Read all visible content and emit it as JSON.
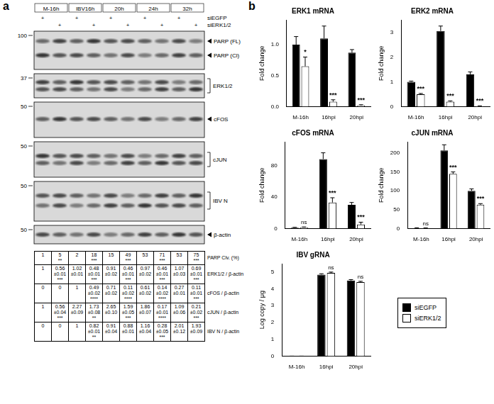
{
  "panel_labels": [
    "a",
    "b"
  ],
  "blot": {
    "groups": [
      "M-16h",
      "IBV16h",
      "20h",
      "24h",
      "32h"
    ],
    "treatments": [
      {
        "name": "siEGFP",
        "marks": [
          "+",
          null,
          "+",
          null,
          "+",
          null,
          "+",
          null,
          "+",
          null
        ]
      },
      {
        "name": "siERK1/2",
        "marks": [
          null,
          "+",
          null,
          "+",
          null,
          "+",
          null,
          "+",
          null,
          "+"
        ]
      }
    ],
    "panels": [
      {
        "labels": [
          "PARP (FL)",
          "PARP (Cl)"
        ],
        "marker": "100"
      },
      {
        "labels": [
          "ERK1/2"
        ],
        "marker": "37"
      },
      {
        "labels": [
          "cFOS"
        ],
        "marker": "50"
      },
      {
        "labels": [
          "cJUN"
        ],
        "marker": "50"
      },
      {
        "labels": [
          "IBV N"
        ],
        "marker": "50"
      },
      {
        "labels": [
          "β-actin"
        ],
        "marker": "50"
      }
    ]
  },
  "table": {
    "rows": [
      {
        "label": "PARP Clv. (%)",
        "cells": [
          [
            "1"
          ],
          [
            "5",
            "**"
          ],
          [
            "2"
          ],
          [
            "18",
            "***"
          ],
          [
            "15"
          ],
          [
            "49",
            "***"
          ],
          [
            "53"
          ],
          [
            "71",
            "***"
          ],
          [
            "53"
          ],
          [
            "75",
            "***"
          ]
        ]
      },
      {
        "label": "ERK1/2 / β-actin",
        "cells": [
          [
            "1"
          ],
          [
            "0.56",
            "±0.01",
            "***"
          ],
          [
            "1.02",
            "±0.01"
          ],
          [
            "0.48",
            "±0.01",
            "***"
          ],
          [
            "0.91",
            "±0.02"
          ],
          [
            "0.46",
            "±0.01",
            "***"
          ],
          [
            "0.97",
            "±0.02"
          ],
          [
            "0.46",
            "±0.01",
            "***"
          ],
          [
            "1.07",
            "±0.03"
          ],
          [
            "0.69",
            "±0.01",
            "***"
          ]
        ]
      },
      {
        "label": "cFOS / β-actin",
        "cells": [
          [
            "0"
          ],
          [
            "0"
          ],
          [
            "1"
          ],
          [
            "0.49",
            "±0.02",
            "****"
          ],
          [
            "0.71",
            "±0.02"
          ],
          [
            "0.11",
            "±0.02",
            "****"
          ],
          [
            "0.61",
            "±0.02"
          ],
          [
            "0.14",
            "±0.02",
            "****"
          ],
          [
            "0.27",
            "±0.01"
          ],
          [
            "0.11",
            "±0.01",
            "***"
          ]
        ]
      },
      {
        "label": "cJUN / β-actin",
        "cells": [
          [
            "1"
          ],
          [
            "0.56",
            "±0.04",
            "***"
          ],
          [
            "2.27",
            "±0.09"
          ],
          [
            "1.73",
            "±0.08",
            "**"
          ],
          [
            "2.65",
            "±0.10"
          ],
          [
            "1.59",
            "±0.05",
            "***"
          ],
          [
            "1.86",
            "±0.07"
          ],
          [
            "0.17",
            "±0.01",
            "****"
          ],
          [
            "1.09",
            "±0.06"
          ],
          [
            "0.21",
            "±0.02",
            "***"
          ]
        ]
      },
      {
        "label": "IBV N / β-actin",
        "cells": [
          [
            "0"
          ],
          [
            "0"
          ],
          [
            "1"
          ],
          [
            "0.82",
            "±0.01",
            "**"
          ],
          [
            "0.91",
            "±0.04"
          ],
          [
            "0.88",
            "±0.01"
          ],
          [
            "1.16",
            "±0.04"
          ],
          [
            "0.28",
            "±0.05",
            "***"
          ],
          [
            "2.01",
            "±0.12"
          ],
          [
            "1.93",
            "±0.09"
          ]
        ]
      }
    ]
  },
  "chart_data": [
    {
      "type": "bar",
      "title": "ERK1 mRNA",
      "ylabel": "Fold change",
      "categories": [
        "M-16h",
        "16hpi",
        "20hpi"
      ],
      "series": [
        {
          "name": "siEGFP",
          "color": "#000000",
          "values": [
            1.0,
            1.1,
            0.87
          ],
          "errors": [
            0.13,
            0.2,
            0.05
          ]
        },
        {
          "name": "siERK1/2",
          "color": "#ffffff",
          "values": [
            0.65,
            0.08,
            0.02
          ],
          "errors": [
            0.15,
            0.03,
            0.01
          ]
        }
      ],
      "significance": [
        "*",
        "***",
        "***"
      ],
      "ylim": [
        0,
        1.4
      ],
      "yticks": [
        {
          "value": 0,
          "label": "0.0"
        },
        {
          "value": 0.5,
          "label": "0.5"
        },
        {
          "value": 1,
          "label": "1.0"
        }
      ],
      "grid": false
    },
    {
      "type": "bar",
      "title": "ERK2 mRNA",
      "ylabel": "Fold change",
      "categories": [
        "M-16h",
        "16hpi",
        "20hpi"
      ],
      "series": [
        {
          "name": "siEGFP",
          "color": "#000000",
          "values": [
            1.0,
            3.05,
            1.3
          ],
          "errors": [
            0.03,
            0.2,
            0.1
          ]
        },
        {
          "name": "siERK1/2",
          "color": "#ffffff",
          "values": [
            0.5,
            0.2,
            0.02
          ],
          "errors": [
            0.03,
            0.03,
            0.01
          ]
        }
      ],
      "significance": [
        "***",
        "***",
        "***"
      ],
      "ylim": [
        0,
        3.5
      ],
      "yticks": [
        0,
        1,
        2,
        3
      ],
      "grid": false
    },
    {
      "type": "bar",
      "title": "cFOS mRNA",
      "ylabel": "Fold change",
      "categories": [
        "M-16h",
        "16hpi",
        "20hpi"
      ],
      "series": [
        {
          "name": "siEGFP",
          "color": "#000000",
          "values": [
            1,
            88,
            30
          ],
          "errors": [
            0.5,
            8,
            3
          ]
        },
        {
          "name": "siERK1/2",
          "color": "#ffffff",
          "values": [
            1.5,
            33,
            5
          ],
          "errors": [
            0.5,
            6,
            3
          ]
        }
      ],
      "significance": [
        "ns",
        "***",
        "***"
      ],
      "ylim": [
        0,
        110
      ],
      "yticks": [
        0,
        40,
        80
      ],
      "grid": false
    },
    {
      "type": "bar",
      "title": "cJUN mRNA",
      "ylabel": "Fold change",
      "categories": [
        "M-16h",
        "16hpi",
        "20hpi"
      ],
      "series": [
        {
          "name": "siEGFP",
          "color": "#000000",
          "values": [
            1,
            207,
            100
          ],
          "errors": [
            1,
            15,
            5
          ]
        },
        {
          "name": "siERK1/2",
          "color": "#ffffff",
          "values": [
            1,
            145,
            63
          ],
          "errors": [
            0.5,
            5,
            3
          ]
        }
      ],
      "significance": [
        "ns",
        "***",
        "***"
      ],
      "ylim": [
        0,
        230
      ],
      "yticks": [
        0,
        50,
        100,
        150,
        200
      ],
      "grid": false
    },
    {
      "type": "bar",
      "title": "IBV gRNA",
      "ylabel": "Log copy / μg",
      "categories": [
        "M-16h",
        "16hpi",
        "20hpi"
      ],
      "series": [
        {
          "name": "siEGFP",
          "color": "#000000",
          "values": [
            0,
            4.85,
            4.5
          ],
          "errors": [
            0,
            0.05,
            0.05
          ]
        },
        {
          "name": "siERK1/2",
          "color": "#ffffff",
          "values": [
            0,
            4.95,
            4.4
          ],
          "errors": [
            0,
            0.05,
            0.05
          ]
        }
      ],
      "significance": [
        null,
        "ns",
        "ns"
      ],
      "ylim": [
        0,
        5.5
      ],
      "yticks": [
        0,
        1,
        2,
        3,
        4,
        5
      ],
      "grid": false
    }
  ]
}
